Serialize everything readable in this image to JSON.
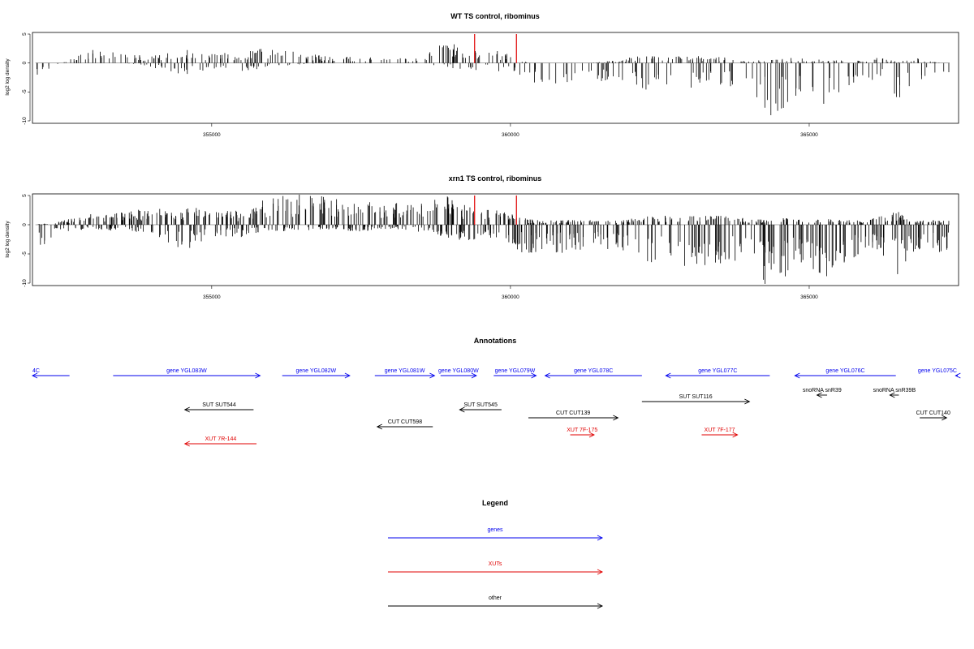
{
  "colors": {
    "axis": "#000000",
    "bars": "#000000",
    "highlight": "#e00000",
    "genes": "#0000ee",
    "xuts": "#e00000",
    "other": "#000000"
  },
  "chart_data": [
    {
      "type": "bar",
      "title": "WT TS control, ribominus",
      "ylabel": "log2 log density",
      "xlim": [
        352000,
        367500
      ],
      "ylim": [
        -10,
        5
      ],
      "yticks": [
        5,
        0,
        -5,
        -10
      ],
      "xticks": [
        355000,
        360000,
        365000
      ],
      "grid": false,
      "highlight_x": [
        359400,
        360100
      ],
      "highlight_y": [
        5,
        5
      ],
      "profile_x": [
        352050,
        352500,
        353000,
        353500,
        354000,
        354500,
        355000,
        355500,
        356000,
        356500,
        357000,
        357500,
        358000,
        358500,
        358900,
        359300,
        359600,
        360000,
        360300,
        360800,
        361300,
        361800,
        362200,
        362700,
        363200,
        363700,
        364000,
        364300,
        364700,
        365000,
        365300,
        365800,
        366200,
        366500,
        366800,
        367200
      ],
      "profile_pos": [
        0,
        0,
        2.0,
        1.4,
        1.2,
        2.2,
        1.4,
        1.6,
        2.4,
        1.4,
        1.0,
        0.8,
        0.8,
        0.6,
        3.4,
        1.6,
        2.2,
        1.2,
        0,
        0,
        0,
        0.4,
        1.2,
        1.0,
        1.0,
        0.8,
        0.4,
        0.4,
        0.8,
        0.6,
        0.5,
        0.4,
        0.8,
        0.2,
        0.8,
        0
      ],
      "profile_neg": [
        -2.2,
        0,
        0,
        0,
        -0.6,
        -1.8,
        -0.8,
        -1.2,
        -0.6,
        -0.2,
        0,
        0,
        0,
        0,
        -0.6,
        -1.2,
        -0.8,
        -1.6,
        -2.8,
        -3.0,
        -2.8,
        -3.2,
        -4.2,
        -3.8,
        -3.6,
        -3.4,
        -4.0,
        -8.0,
        -6.0,
        -4.5,
        -6.5,
        -3.0,
        -2.5,
        -8.0,
        -2.5,
        -2.0
      ],
      "nbars": 640,
      "seed": 7
    },
    {
      "type": "bar",
      "title": "xrn1 TS control, ribominus",
      "ylabel": "log2 log density",
      "xlim": [
        352000,
        367500
      ],
      "ylim": [
        -10,
        5
      ],
      "yticks": [
        5,
        0,
        -5,
        -10
      ],
      "xticks": [
        355000,
        360000,
        365000
      ],
      "grid": false,
      "highlight_x": [
        359400,
        360100
      ],
      "highlight_y": [
        5,
        5
      ],
      "profile_x": [
        352050,
        352500,
        353000,
        353500,
        354000,
        354500,
        355000,
        355500,
        356000,
        356500,
        357000,
        357500,
        358000,
        358500,
        358900,
        359300,
        359600,
        360000,
        360300,
        360800,
        361300,
        361800,
        362200,
        362700,
        363200,
        363700,
        364000,
        364300,
        364700,
        365000,
        365300,
        365800,
        366200,
        366500,
        366800,
        367200
      ],
      "profile_pos": [
        0,
        0.6,
        1.6,
        1.8,
        2.4,
        2.6,
        2.2,
        2.0,
        4.2,
        4.4,
        4.0,
        3.8,
        3.2,
        3.0,
        4.4,
        2.6,
        2.4,
        1.6,
        0.8,
        0.6,
        0.8,
        0.6,
        1.2,
        1.4,
        1.4,
        1.2,
        1.0,
        0.8,
        1.0,
        0.8,
        0.8,
        0.6,
        1.2,
        2.0,
        0.8,
        0.6
      ],
      "profile_neg": [
        -4.0,
        -1.0,
        -0.6,
        -1.0,
        -1.6,
        -3.8,
        -2.0,
        -1.8,
        -1.0,
        -0.8,
        -0.8,
        -1.0,
        -0.8,
        -1.0,
        -1.8,
        -2.4,
        -2.0,
        -3.0,
        -4.5,
        -4.2,
        -4.0,
        -3.8,
        -5.5,
        -5.8,
        -6.0,
        -5.6,
        -5.2,
        -9.0,
        -7.0,
        -6.0,
        -7.5,
        -4.5,
        -4.0,
        -8.5,
        -4.2,
        -4.0
      ],
      "nbars": 1100,
      "seed": 13
    }
  ],
  "annotations": {
    "title": "Annotations",
    "features": [
      {
        "label": "4C",
        "x1": 352000,
        "x2": 352620,
        "dir": "left",
        "kind": "genes",
        "row": 0
      },
      {
        "label": "gene YGL083W",
        "x1": 353350,
        "x2": 355810,
        "dir": "right",
        "kind": "genes",
        "row": 0
      },
      {
        "label": "gene YGL082W",
        "x1": 356180,
        "x2": 357310,
        "dir": "right",
        "kind": "genes",
        "row": 0
      },
      {
        "label": "gene YGL081W",
        "x1": 357730,
        "x2": 358730,
        "dir": "right",
        "kind": "genes",
        "row": 0
      },
      {
        "label": "gene YGL080W",
        "x1": 358830,
        "x2": 359430,
        "dir": "right",
        "kind": "genes",
        "row": 0
      },
      {
        "label": "gene YGL079W",
        "x1": 359720,
        "x2": 360430,
        "dir": "right",
        "kind": "genes",
        "row": 0
      },
      {
        "label": "gene YGL078C",
        "x1": 360580,
        "x2": 362200,
        "dir": "left",
        "kind": "genes",
        "row": 0
      },
      {
        "label": "gene YGL077C",
        "x1": 362600,
        "x2": 364340,
        "dir": "left",
        "kind": "genes",
        "row": 0
      },
      {
        "label": "gene YGL076C",
        "x1": 364760,
        "x2": 366450,
        "dir": "left",
        "kind": "genes",
        "row": 0
      },
      {
        "label": "gene YGL075C",
        "x1": 367450,
        "x2": 368430,
        "dir": "left",
        "kind": "genes",
        "row": 0
      },
      {
        "label": "snoRNA snR39",
        "x1": 365130,
        "x2": 365300,
        "dir": "left",
        "kind": "other",
        "row": 1
      },
      {
        "label": "snoRNA snR39B",
        "x1": 366350,
        "x2": 366500,
        "dir": "left",
        "kind": "other",
        "row": 1
      },
      {
        "label": "SUT SUT116",
        "x1": 362200,
        "x2": 364000,
        "dir": "right",
        "kind": "other",
        "row": 2
      },
      {
        "label": "SUT SUT544",
        "x1": 354550,
        "x2": 355700,
        "dir": "left",
        "kind": "other",
        "row": 3
      },
      {
        "label": "SUT SUT545",
        "x1": 359150,
        "x2": 359850,
        "dir": "left",
        "kind": "other",
        "row": 3
      },
      {
        "label": "CUT CUT139",
        "x1": 360300,
        "x2": 361800,
        "dir": "right",
        "kind": "other",
        "row": 4
      },
      {
        "label": "CUT CUT140",
        "x1": 366850,
        "x2": 367300,
        "dir": "right",
        "kind": "other",
        "row": 4
      },
      {
        "label": "CUT CUT598",
        "x1": 357770,
        "x2": 358700,
        "dir": "left",
        "kind": "other",
        "row": 5
      },
      {
        "label": "XUT 7F-175",
        "x1": 361000,
        "x2": 361400,
        "dir": "right",
        "kind": "xuts",
        "row": 6
      },
      {
        "label": "XUT 7F-177",
        "x1": 363200,
        "x2": 363800,
        "dir": "right",
        "kind": "xuts",
        "row": 6
      },
      {
        "label": "XUT 7R-144",
        "x1": 354550,
        "x2": 355750,
        "dir": "left",
        "kind": "xuts",
        "row": 7
      }
    ]
  },
  "legend": {
    "title": "Legend",
    "items": [
      {
        "label": "genes",
        "kind": "genes"
      },
      {
        "label": "XUTs",
        "kind": "xuts"
      },
      {
        "label": "other",
        "kind": "other"
      }
    ]
  }
}
